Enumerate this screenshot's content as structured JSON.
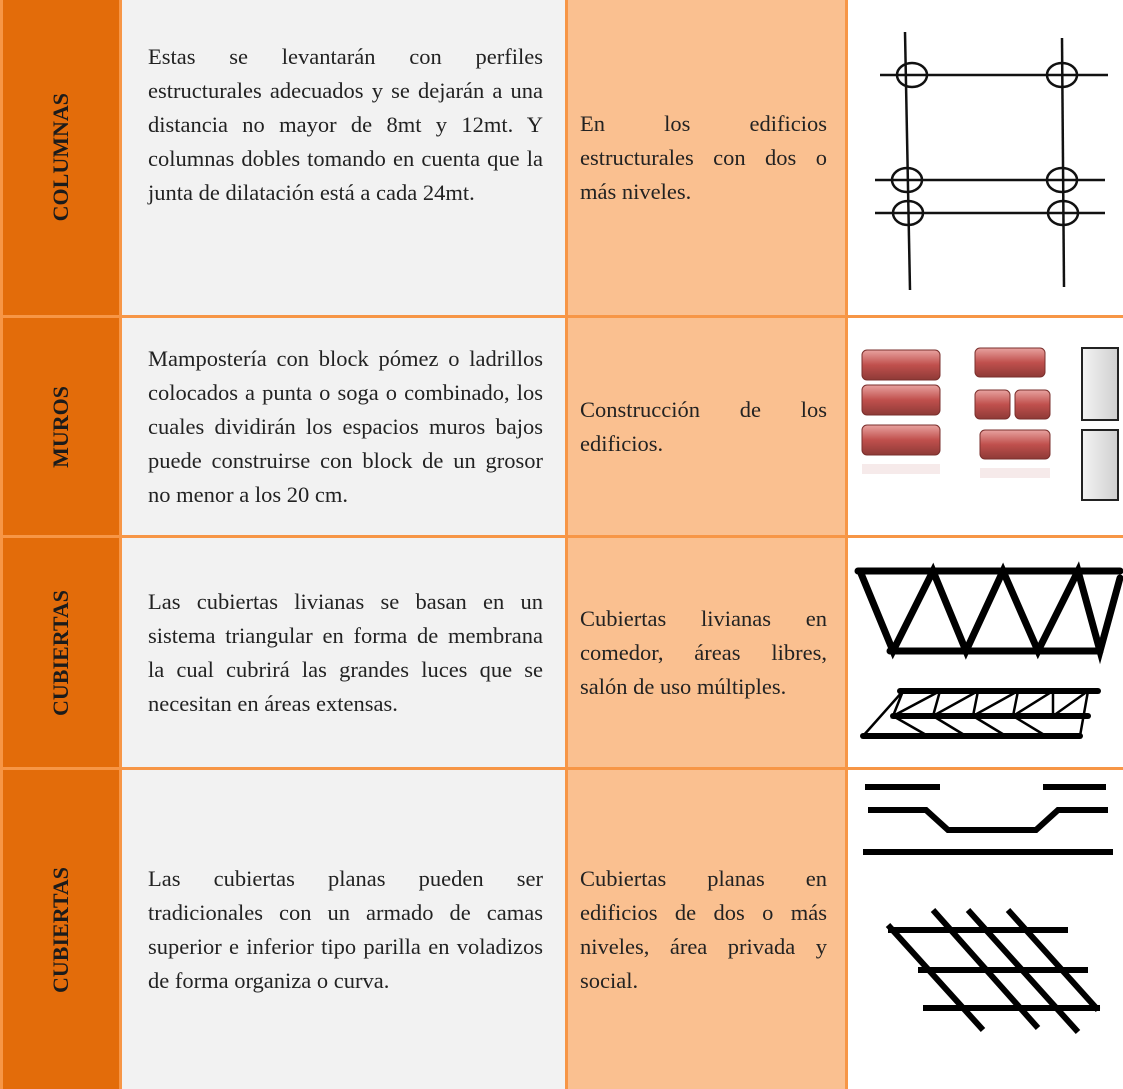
{
  "rows": [
    {
      "label": "COLUMNAS",
      "description": "Estas se levantarán con perfiles estructurales adecuados y se dejarán a una distancia no mayor de 8mt y 12mt. Y columnas dobles tomando en cuenta que la junta de dilatación está a cada 24mt.",
      "use": "En los edificios estructurales con dos o más niveles."
    },
    {
      "label": "MUROS",
      "description": "Mampostería con block pómez o ladrillos colocados a punta o soga o combinado, los cuales dividirán los espacios muros bajos puede construirse con block de un grosor no menor a los 20 cm.",
      "use": "Construcción de los edificios."
    },
    {
      "label": "CUBIERTAS",
      "description": "Las cubiertas livianas se basan en un sistema triangular en forma de membrana la cual cubrirá las grandes luces que se necesitan en áreas extensas.",
      "use": "Cubiertas livianas en comedor, áreas libres, salón de uso múltiples."
    },
    {
      "label": "CUBIERTAS",
      "description": "Las cubiertas planas pueden ser tradicionales con un armado de camas superior e inferior tipo parilla en voladizos de forma organiza o curva.",
      "use": "Cubiertas planas en edificios de dos o más niveles, área privada y social."
    }
  ]
}
